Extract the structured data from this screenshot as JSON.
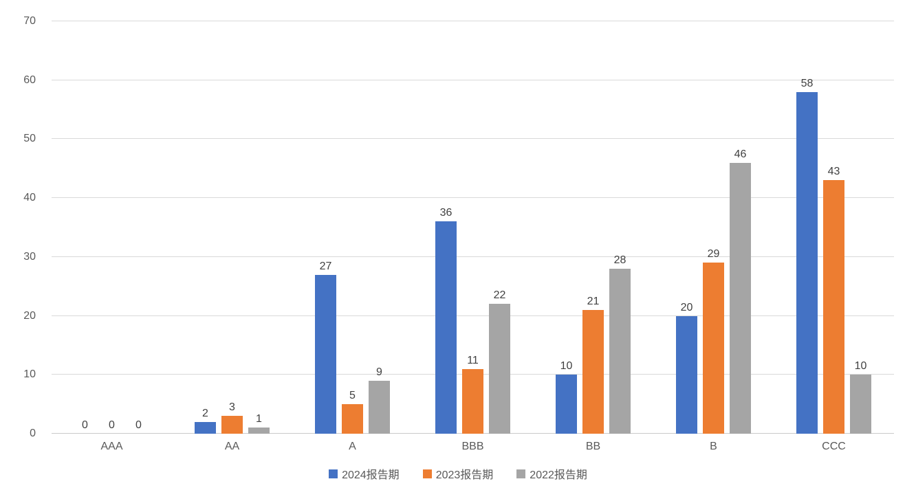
{
  "chart_data": {
    "type": "bar",
    "title": "",
    "categories": [
      "AAA",
      "AA",
      "A",
      "BBB",
      "BB",
      "B",
      "CCC"
    ],
    "series": [
      {
        "name": "2024报告期",
        "color": "#4472C4",
        "values": [
          0,
          2,
          27,
          36,
          10,
          20,
          58
        ]
      },
      {
        "name": "2023报告期",
        "color": "#ED7D31",
        "values": [
          0,
          3,
          5,
          11,
          21,
          29,
          43
        ]
      },
      {
        "name": "2022报告期",
        "color": "#A5A5A5",
        "values": [
          0,
          1,
          9,
          22,
          28,
          46,
          10
        ]
      }
    ],
    "y_ticks": [
      0,
      10,
      20,
      30,
      40,
      50,
      60,
      70
    ],
    "ylim": [
      0,
      70
    ],
    "grid": true,
    "data_labels": true,
    "legend_position": "bottom"
  },
  "colors": {
    "background": "#FFFFFF",
    "gridline": "#D9D9D9",
    "axis_line": "#C9C9C9",
    "tick_text": "#595959",
    "value_label_text": "#404040"
  }
}
